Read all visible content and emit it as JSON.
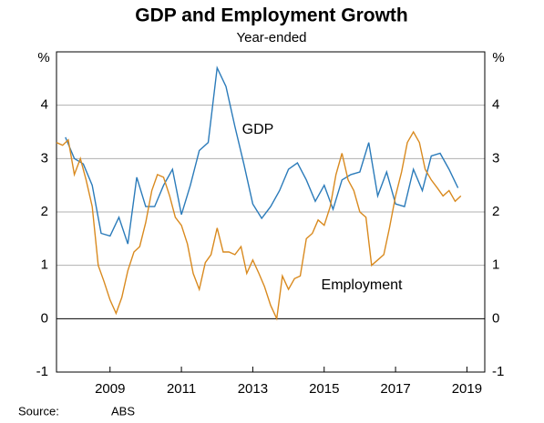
{
  "chart_data": {
    "type": "line",
    "title": "GDP and Employment Growth",
    "subtitle": "Year-ended",
    "y_unit": "%",
    "xlim": [
      2007.5,
      2019.5
    ],
    "xticks": [
      2009,
      2011,
      2013,
      2015,
      2017,
      2019
    ],
    "ylim": [
      -1,
      5
    ],
    "yticks": [
      -1,
      0,
      1,
      2,
      3,
      4
    ],
    "grid": true,
    "series": [
      {
        "name": "GDP",
        "color": "#2b7bba",
        "x": [
          2007.75,
          2008,
          2008.25,
          2008.5,
          2008.75,
          2009,
          2009.25,
          2009.5,
          2009.75,
          2010,
          2010.25,
          2010.5,
          2010.75,
          2011,
          2011.25,
          2011.5,
          2011.75,
          2012,
          2012.25,
          2012.5,
          2012.75,
          2013,
          2013.25,
          2013.5,
          2013.75,
          2014,
          2014.25,
          2014.5,
          2014.75,
          2015,
          2015.25,
          2015.5,
          2015.75,
          2016,
          2016.25,
          2016.5,
          2016.75,
          2017,
          2017.25,
          2017.5,
          2017.75,
          2018,
          2018.25,
          2018.5,
          2018.75
        ],
        "values": [
          3.4,
          3.0,
          2.9,
          2.5,
          1.6,
          1.55,
          1.9,
          1.4,
          2.65,
          2.1,
          2.1,
          2.5,
          2.8,
          1.95,
          2.5,
          3.15,
          3.3,
          4.7,
          4.35,
          3.6,
          2.9,
          2.15,
          1.88,
          2.1,
          2.4,
          2.8,
          2.92,
          2.6,
          2.2,
          2.5,
          2.05,
          2.6,
          2.7,
          2.75,
          3.3,
          2.3,
          2.75,
          2.15,
          2.1,
          2.8,
          2.4,
          3.05,
          3.1,
          2.8,
          2.45
        ]
      },
      {
        "name": "Employment",
        "color": "#d98a1f",
        "x": [
          2007.5,
          2007.67,
          2007.83,
          2008,
          2008.17,
          2008.33,
          2008.5,
          2008.67,
          2008.83,
          2009,
          2009.17,
          2009.33,
          2009.5,
          2009.67,
          2009.83,
          2010,
          2010.17,
          2010.33,
          2010.5,
          2010.67,
          2010.83,
          2011,
          2011.17,
          2011.33,
          2011.5,
          2011.67,
          2011.83,
          2012,
          2012.17,
          2012.33,
          2012.5,
          2012.67,
          2012.83,
          2013,
          2013.17,
          2013.33,
          2013.5,
          2013.67,
          2013.83,
          2014,
          2014.17,
          2014.33,
          2014.5,
          2014.67,
          2014.83,
          2015,
          2015.17,
          2015.33,
          2015.5,
          2015.67,
          2015.83,
          2016,
          2016.17,
          2016.33,
          2016.5,
          2016.67,
          2016.83,
          2017,
          2017.17,
          2017.33,
          2017.5,
          2017.67,
          2017.83,
          2018,
          2018.17,
          2018.33,
          2018.5,
          2018.67,
          2018.83
        ],
        "values": [
          3.3,
          3.25,
          3.35,
          2.7,
          3.0,
          2.6,
          2.1,
          1.0,
          0.7,
          0.35,
          0.1,
          0.4,
          0.9,
          1.25,
          1.35,
          1.8,
          2.4,
          2.7,
          2.65,
          2.3,
          1.9,
          1.75,
          1.4,
          0.85,
          0.55,
          1.05,
          1.2,
          1.7,
          1.25,
          1.25,
          1.2,
          1.35,
          0.85,
          1.1,
          0.85,
          0.6,
          0.25,
          0.0,
          0.8,
          0.55,
          0.75,
          0.8,
          1.5,
          1.6,
          1.85,
          1.75,
          2.1,
          2.7,
          3.1,
          2.6,
          2.4,
          2.0,
          1.9,
          1.0,
          1.1,
          1.2,
          1.7,
          2.3,
          2.75,
          3.3,
          3.5,
          3.3,
          2.8,
          2.6,
          2.45,
          2.3,
          2.4,
          2.2,
          2.3
        ]
      }
    ],
    "source_label": "Source:",
    "source": "ABS"
  }
}
